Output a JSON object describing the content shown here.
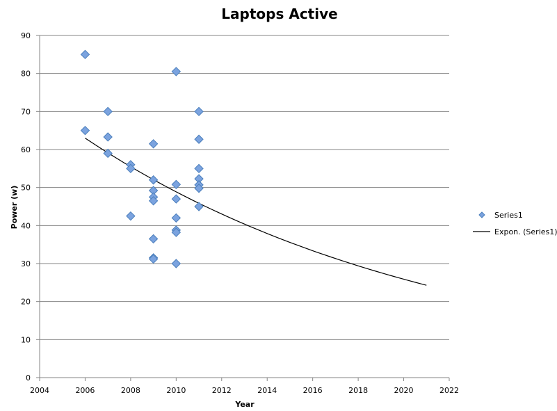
{
  "colors": {
    "marker_fill": "#7BA3DF",
    "marker_stroke": "#4A7EBB",
    "trendline": "#000000",
    "gridline": "#868686",
    "axis": "#868686"
  },
  "chart_data": {
    "type": "scatter",
    "title": "Laptops Active",
    "xlabel": "Year",
    "ylabel": "Power (w)",
    "xlim": [
      2004,
      2022
    ],
    "ylim": [
      0,
      90
    ],
    "x_ticks": [
      2004,
      2006,
      2008,
      2010,
      2012,
      2014,
      2016,
      2018,
      2020,
      2022
    ],
    "y_ticks": [
      0,
      10,
      20,
      30,
      40,
      50,
      60,
      70,
      80,
      90
    ],
    "grid": "horizontal",
    "legend_position": "right",
    "series": [
      {
        "name": "Series1",
        "marker": "diamond",
        "points": [
          [
            2006,
            85
          ],
          [
            2006,
            65
          ],
          [
            2007,
            70
          ],
          [
            2007,
            63.3
          ],
          [
            2007,
            59
          ],
          [
            2008,
            56
          ],
          [
            2008,
            55
          ],
          [
            2008,
            42.5
          ],
          [
            2009,
            61.5
          ],
          [
            2009,
            52
          ],
          [
            2009,
            49.2
          ],
          [
            2009,
            47.5
          ],
          [
            2009,
            46.5
          ],
          [
            2009,
            36.5
          ],
          [
            2009,
            31.5
          ],
          [
            2009,
            31.2
          ],
          [
            2010,
            80.5
          ],
          [
            2010,
            50.8
          ],
          [
            2010,
            47
          ],
          [
            2010,
            42
          ],
          [
            2010,
            38.8
          ],
          [
            2010,
            38.2
          ],
          [
            2010,
            30
          ],
          [
            2011,
            70
          ],
          [
            2011,
            62.7
          ],
          [
            2011,
            55
          ],
          [
            2011,
            52.3
          ],
          [
            2011,
            50.7
          ],
          [
            2011,
            49.8
          ],
          [
            2011,
            45
          ]
        ]
      }
    ],
    "trendline": {
      "name": "Expon. (Series1)",
      "type": "exponential",
      "x_range": [
        2006,
        2021
      ],
      "y_start": 63,
      "y_end": 24.3
    }
  }
}
